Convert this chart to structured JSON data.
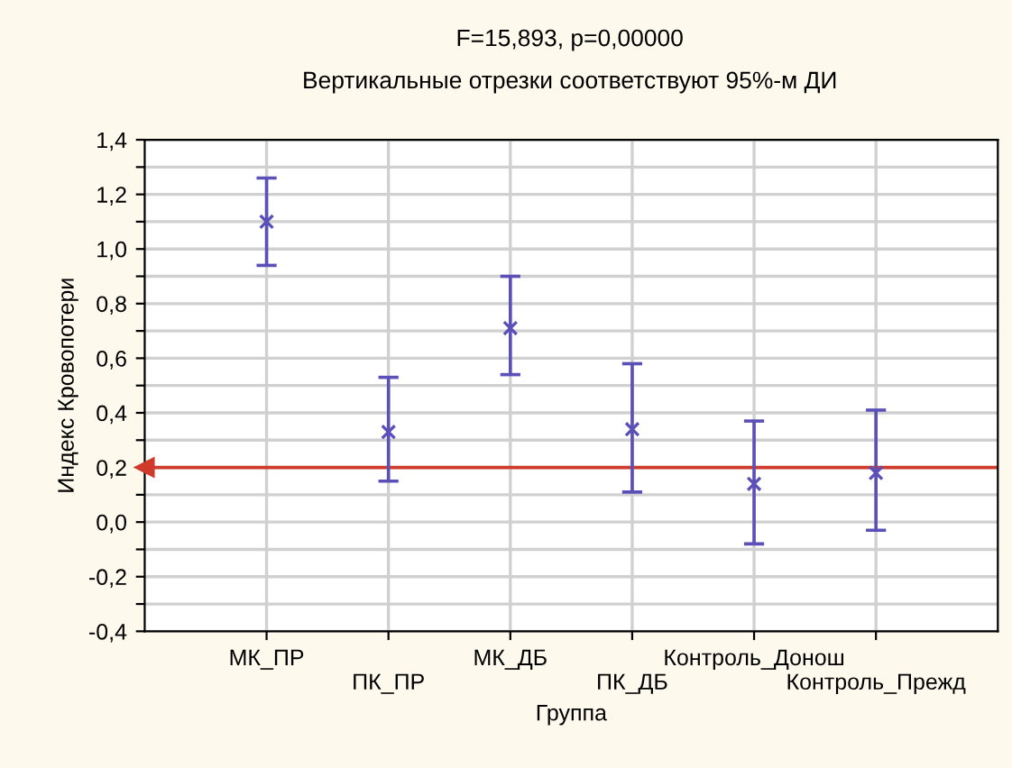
{
  "chart_data": {
    "type": "scatter",
    "title": "F=15,893, p=0,00000",
    "subtitle": "Вертикальные отрезки соответствуют 95%-м ДИ",
    "xlabel": "Группа",
    "ylabel": "Индекс Кровопотери",
    "categories": [
      "МК_ПР",
      "ПК_ПР",
      "МК_ДБ",
      "ПК_ДБ",
      "Контроль_Донош",
      "Контроль_Прежд"
    ],
    "series": [
      {
        "color": "#5b4fb8",
        "values": [
          1.1,
          0.33,
          0.71,
          0.34,
          0.14,
          0.18
        ],
        "errors": [
          [
            0.94,
            1.26
          ],
          [
            0.15,
            0.53
          ],
          [
            0.54,
            0.9
          ],
          [
            0.11,
            0.58
          ],
          [
            -0.08,
            0.37
          ],
          [
            -0.03,
            0.41
          ]
        ]
      }
    ],
    "ylim": [
      -0.4,
      1.4
    ],
    "yticks": [
      {
        "value": -0.4,
        "label": "-0,4"
      },
      {
        "value": -0.3,
        "label": null
      },
      {
        "value": -0.2,
        "label": "-0,2"
      },
      {
        "value": -0.1,
        "label": null
      },
      {
        "value": 0.0,
        "label": "0,0"
      },
      {
        "value": 0.1,
        "label": null
      },
      {
        "value": 0.2,
        "label": "0,2"
      },
      {
        "value": 0.3,
        "label": null
      },
      {
        "value": 0.4,
        "label": "0,4"
      },
      {
        "value": 0.5,
        "label": null
      },
      {
        "value": 0.6,
        "label": "0,6"
      },
      {
        "value": 0.7,
        "label": null
      },
      {
        "value": 0.8,
        "label": "0,8"
      },
      {
        "value": 0.9,
        "label": null
      },
      {
        "value": 1.0,
        "label": "1,0"
      },
      {
        "value": 1.1,
        "label": null
      },
      {
        "value": 1.2,
        "label": "1,2"
      },
      {
        "value": 1.3,
        "label": null
      },
      {
        "value": 1.4,
        "label": "1,4"
      }
    ],
    "ref_lines": [
      {
        "axis": "y",
        "value": 0.2,
        "color": "#d03a2a"
      }
    ],
    "grid": true,
    "marker": "cross"
  }
}
